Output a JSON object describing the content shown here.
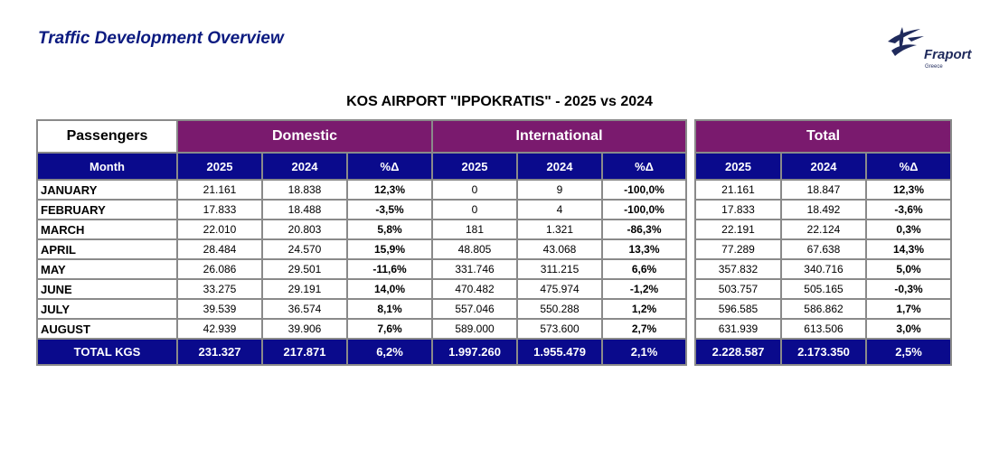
{
  "page_title": "Traffic Development Overview",
  "logo": {
    "name": "Fraport",
    "subtitle": "Greece"
  },
  "report_title": "KOS AIRPORT \"IPPOKRATIS\" - 2025 vs 2024",
  "groups": {
    "passengers": "Passengers",
    "domestic": "Domestic",
    "international": "International",
    "total": "Total"
  },
  "columns": {
    "month": "Month",
    "y2025": "2025",
    "y2024": "2024",
    "pct": "%Δ"
  },
  "rows": [
    {
      "month": "JANUARY",
      "dom_2025": "21.161",
      "dom_2024": "18.838",
      "dom_pct": "12,3%",
      "int_2025": "0",
      "int_2024": "9",
      "int_pct": "-100,0%",
      "tot_2025": "21.161",
      "tot_2024": "18.847",
      "tot_pct": "12,3%"
    },
    {
      "month": "FEBRUARY",
      "dom_2025": "17.833",
      "dom_2024": "18.488",
      "dom_pct": "-3,5%",
      "int_2025": "0",
      "int_2024": "4",
      "int_pct": "-100,0%",
      "tot_2025": "17.833",
      "tot_2024": "18.492",
      "tot_pct": "-3,6%"
    },
    {
      "month": "MARCH",
      "dom_2025": "22.010",
      "dom_2024": "20.803",
      "dom_pct": "5,8%",
      "int_2025": "181",
      "int_2024": "1.321",
      "int_pct": "-86,3%",
      "tot_2025": "22.191",
      "tot_2024": "22.124",
      "tot_pct": "0,3%"
    },
    {
      "month": "APRIL",
      "dom_2025": "28.484",
      "dom_2024": "24.570",
      "dom_pct": "15,9%",
      "int_2025": "48.805",
      "int_2024": "43.068",
      "int_pct": "13,3%",
      "tot_2025": "77.289",
      "tot_2024": "67.638",
      "tot_pct": "14,3%"
    },
    {
      "month": "MAY",
      "dom_2025": "26.086",
      "dom_2024": "29.501",
      "dom_pct": "-11,6%",
      "int_2025": "331.746",
      "int_2024": "311.215",
      "int_pct": "6,6%",
      "tot_2025": "357.832",
      "tot_2024": "340.716",
      "tot_pct": "5,0%"
    },
    {
      "month": "JUNE",
      "dom_2025": "33.275",
      "dom_2024": "29.191",
      "dom_pct": "14,0%",
      "int_2025": "470.482",
      "int_2024": "475.974",
      "int_pct": "-1,2%",
      "tot_2025": "503.757",
      "tot_2024": "505.165",
      "tot_pct": "-0,3%"
    },
    {
      "month": "JULY",
      "dom_2025": "39.539",
      "dom_2024": "36.574",
      "dom_pct": "8,1%",
      "int_2025": "557.046",
      "int_2024": "550.288",
      "int_pct": "1,2%",
      "tot_2025": "596.585",
      "tot_2024": "586.862",
      "tot_pct": "1,7%"
    },
    {
      "month": "AUGUST",
      "dom_2025": "42.939",
      "dom_2024": "39.906",
      "dom_pct": "7,6%",
      "int_2025": "589.000",
      "int_2024": "573.600",
      "int_pct": "2,7%",
      "tot_2025": "631.939",
      "tot_2024": "613.506",
      "tot_pct": "3,0%"
    }
  ],
  "totals": {
    "label": "TOTAL KGS",
    "dom_2025": "231.327",
    "dom_2024": "217.871",
    "dom_pct": "6,2%",
    "int_2025": "1.997.260",
    "int_2024": "1.955.479",
    "int_pct": "2,1%",
    "tot_2025": "2.228.587",
    "tot_2024": "2.173.350",
    "tot_pct": "2,5%"
  },
  "colors": {
    "title_blue": "#0b1a80",
    "group_purple": "#7a1a6e",
    "header_navy": "#0a0a8c",
    "border_gray": "#8a8a8a"
  }
}
